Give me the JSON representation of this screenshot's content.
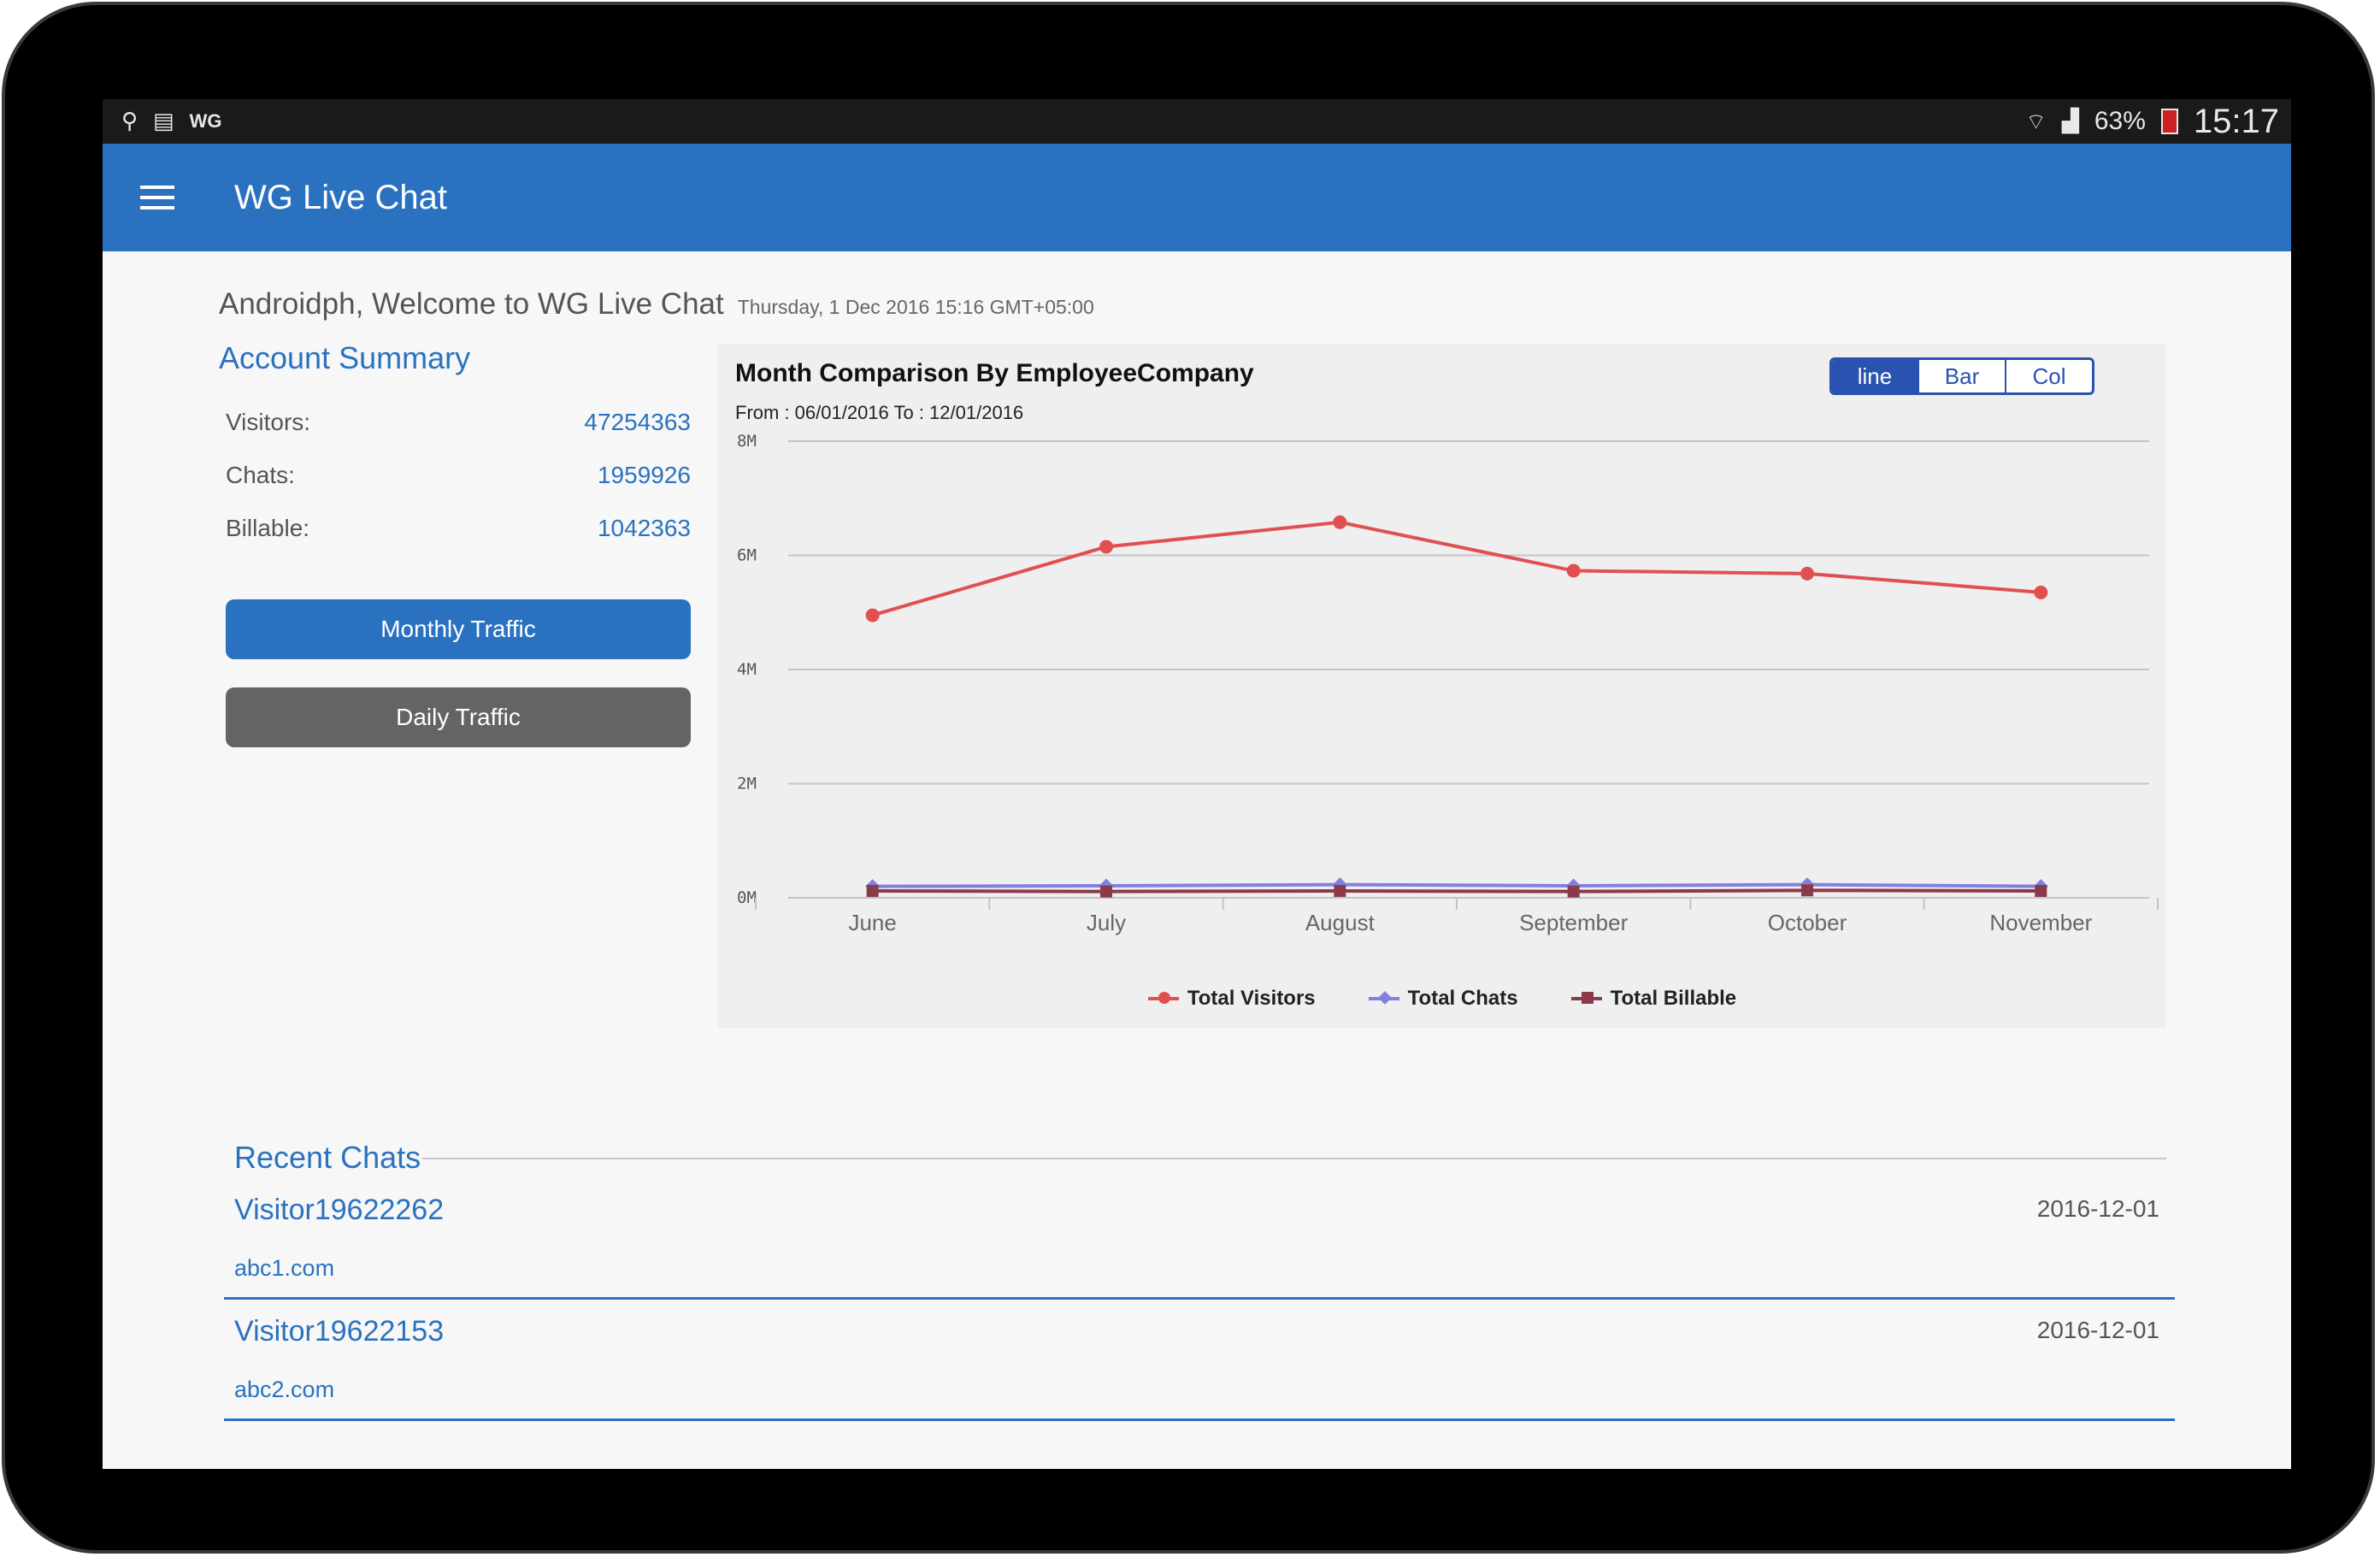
{
  "status_bar": {
    "left_icons": [
      "usb-icon",
      "sim-icon"
    ],
    "wg_label": "WG",
    "battery_percent": "63%",
    "time": "15:17"
  },
  "app_bar": {
    "title": "WG Live Chat"
  },
  "welcome": {
    "text": "Androidph, Welcome to WG Live Chat",
    "date": "Thursday, 1 Dec 2016 15:16 GMT+05:00"
  },
  "account_summary": {
    "title": "Account Summary",
    "rows": [
      {
        "label": "Visitors:",
        "value": "47254363"
      },
      {
        "label": "Chats:",
        "value": "1959926"
      },
      {
        "label": "Billable:",
        "value": "1042363"
      }
    ],
    "monthly_button": "Monthly Traffic",
    "daily_button": "Daily Traffic"
  },
  "chart_toggle": [
    "line",
    "Bar",
    "Col"
  ],
  "colors": {
    "primary": "#2a72c0",
    "visitors": "#e05050",
    "chats": "#8080e0",
    "billable": "#8b3a4a"
  },
  "chart_data": {
    "type": "line",
    "title": "Month Comparison By EmployeeCompany",
    "subtitle": "From : 06/01/2016 To : 12/01/2016",
    "categories": [
      "June",
      "July",
      "August",
      "September",
      "October",
      "November"
    ],
    "y_ticks": [
      "8M",
      "6M",
      "4M",
      "2M",
      "0M"
    ],
    "ylim": [
      0,
      8000000
    ],
    "grid": true,
    "legend_position": "bottom",
    "series": [
      {
        "name": "Total Visitors",
        "values": [
          4950000,
          6150000,
          6580000,
          5730000,
          5680000,
          5350000
        ]
      },
      {
        "name": "Total Chats",
        "values": [
          200000,
          210000,
          230000,
          210000,
          230000,
          200000
        ]
      },
      {
        "name": "Total Billable",
        "values": [
          120000,
          110000,
          120000,
          110000,
          130000,
          120000
        ]
      }
    ]
  },
  "recent_chats": {
    "title": "Recent Chats",
    "items": [
      {
        "name": "Visitor19622262",
        "site": "abc1.com",
        "date": "2016-12-01"
      },
      {
        "name": "Visitor19622153",
        "site": "abc2.com",
        "date": "2016-12-01"
      }
    ]
  }
}
